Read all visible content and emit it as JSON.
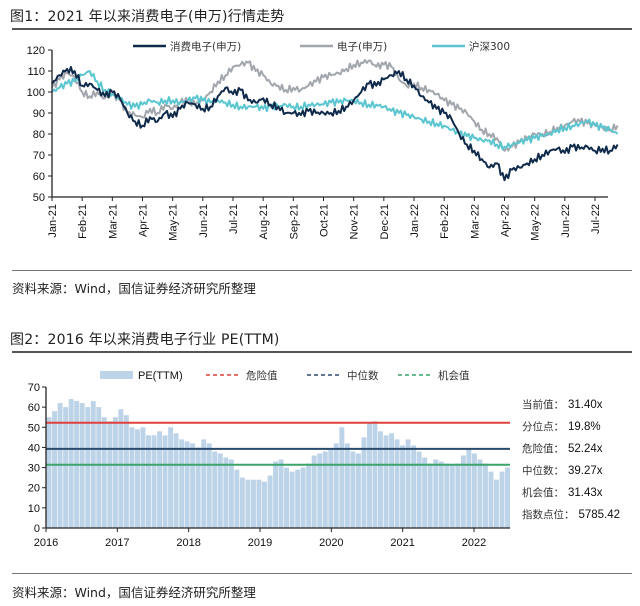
{
  "figure1": {
    "title": "图1：2021 年以来消费电子(申万)行情走势",
    "source": "资料来源：Wind，国信证券经济研究所整理"
  },
  "figure2": {
    "title": "图2：2016 年以来消费电子行业 PE(TTM)",
    "source": "资料来源：Wind，国信证券经济研究所整理",
    "stats": [
      {
        "label": "当前值：",
        "value": "31.40x"
      },
      {
        "label": "分位点：",
        "value": "19.8%"
      },
      {
        "label": "危险值：",
        "value": "52.24x"
      },
      {
        "label": "中位数：",
        "value": "39.27x"
      },
      {
        "label": "机会值：",
        "value": "31.43x"
      },
      {
        "label": "指数点位：",
        "value": "5785.42"
      }
    ]
  },
  "chart_data": [
    {
      "type": "line",
      "title": "图1：2021 年以来消费电子(申万)行情走势",
      "xlabel": "",
      "ylabel": "",
      "ylim": [
        50,
        120
      ],
      "yticks": [
        50,
        60,
        70,
        80,
        90,
        100,
        110,
        120
      ],
      "xticks": [
        "Jan-21",
        "Feb-21",
        "Mar-21",
        "Apr-21",
        "May-21",
        "Jun-21",
        "Jul-21",
        "Aug-21",
        "Sep-21",
        "Oct-21",
        "Nov-21",
        "Dec-21",
        "Jan-22",
        "Feb-22",
        "Mar-22",
        "Apr-22",
        "May-22",
        "Jun-22",
        "Jul-22"
      ],
      "legend_position": "top",
      "x": [
        0,
        0.25,
        0.5,
        0.75,
        1,
        1.25,
        1.5,
        1.75,
        2,
        2.25,
        2.5,
        2.75,
        3,
        3.25,
        3.5,
        3.75,
        4,
        4.25,
        4.5,
        4.75,
        5,
        5.25,
        5.5,
        5.75,
        6,
        6.25,
        6.5,
        6.75,
        7,
        7.25,
        7.5,
        7.75,
        8,
        8.25,
        8.5,
        8.75,
        9,
        9.25,
        9.5,
        9.75,
        10,
        10.25,
        10.5,
        10.75,
        11,
        11.25,
        11.5,
        11.75,
        12,
        12.25,
        12.5,
        12.75,
        13,
        13.25,
        13.5,
        13.75,
        14,
        14.25,
        14.5,
        14.75,
        15,
        15.25,
        15.5,
        15.75,
        16,
        16.25,
        16.5,
        16.75,
        17,
        17.25,
        17.5,
        17.75,
        18,
        18.25,
        18.5,
        18.75
      ],
      "series": [
        {
          "name": "消费电子(申万)",
          "color": "#0f2a4a",
          "values": [
            104,
            108,
            111,
            110,
            103,
            104,
            101,
            98,
            100,
            97,
            90,
            86,
            84,
            88,
            86,
            90,
            88,
            92,
            95,
            94,
            92,
            93,
            98,
            102,
            99,
            101,
            96,
            95,
            97,
            94,
            93,
            90,
            90,
            89,
            91,
            90,
            90,
            90,
            91,
            93,
            96,
            100,
            104,
            103,
            106,
            108,
            110,
            106,
            103,
            98,
            95,
            92,
            90,
            87,
            80,
            75,
            72,
            68,
            64,
            66,
            58,
            63,
            64,
            66,
            68,
            70,
            72,
            73,
            71,
            74,
            73,
            74,
            72,
            73,
            72,
            75
          ]
        },
        {
          "name": "电子(申万)",
          "color": "#a2a6ad",
          "values": [
            102,
            106,
            109,
            107,
            100,
            98,
            100,
            97,
            99,
            96,
            90,
            89,
            88,
            92,
            90,
            94,
            92,
            95,
            96,
            94,
            96,
            100,
            105,
            108,
            112,
            113,
            114,
            110,
            108,
            104,
            103,
            101,
            102,
            101,
            103,
            105,
            107,
            108,
            109,
            111,
            113,
            114,
            115,
            112,
            113,
            112,
            106,
            103,
            104,
            102,
            101,
            99,
            96,
            94,
            92,
            90,
            86,
            82,
            80,
            78,
            72,
            74,
            76,
            78,
            80,
            80,
            81,
            83,
            84,
            86,
            86,
            85,
            84,
            83,
            82,
            84
          ]
        },
        {
          "name": "沪深300",
          "color": "#5cc6d0",
          "values": [
            100,
            102,
            104,
            105,
            108,
            110,
            105,
            101,
            99,
            97,
            94,
            93,
            94,
            96,
            95,
            96,
            96,
            95,
            96,
            97,
            96,
            95,
            96,
            95,
            94,
            93,
            93,
            93,
            92,
            93,
            93,
            94,
            93,
            93,
            94,
            94,
            94,
            95,
            95,
            96,
            96,
            95,
            94,
            94,
            93,
            91,
            90,
            89,
            88,
            87,
            86,
            85,
            84,
            82,
            80,
            79,
            78,
            77,
            77,
            75,
            74,
            75,
            76,
            77,
            78,
            79,
            80,
            82,
            83,
            84,
            85,
            86,
            84,
            83,
            82,
            80
          ]
        }
      ]
    },
    {
      "type": "bar",
      "title": "图2：2016 年以来消费电子行业 PE(TTM)",
      "xlabel": "",
      "ylabel": "",
      "ylim": [
        0,
        70
      ],
      "yticks": [
        0,
        10,
        20,
        30,
        40,
        50,
        60,
        70
      ],
      "xticks": [
        "2016",
        "2017",
        "2018",
        "2019",
        "2020",
        "2021",
        "2022"
      ],
      "legend_position": "top",
      "series": [
        {
          "name": "PE(TTM)",
          "color": "#bcd3e8",
          "x_start": 2016,
          "step_years": 0.0833,
          "values": [
            55,
            58,
            62,
            60,
            64,
            63,
            62,
            60,
            63,
            60,
            55,
            53,
            55,
            59,
            56,
            50,
            49,
            50,
            46,
            46,
            48,
            46,
            50,
            47,
            44,
            43,
            42,
            40,
            44,
            42,
            38,
            37,
            35,
            34,
            29,
            25,
            24,
            24,
            24,
            23,
            26,
            33,
            34,
            30,
            28,
            29,
            30,
            32,
            36,
            37,
            38,
            39,
            42,
            50,
            42,
            38,
            37,
            45,
            52,
            53,
            48,
            46,
            47,
            44,
            41,
            44,
            41,
            38,
            35,
            32,
            34,
            33,
            32,
            31,
            32,
            36,
            39,
            37,
            34,
            32,
            28,
            24,
            28,
            30
          ]
        },
        {
          "name": "危险值",
          "color": "#e0403a",
          "value": 52.24
        },
        {
          "name": "中位数",
          "color": "#2a4a6e",
          "value": 39.27
        },
        {
          "name": "机会值",
          "color": "#3aa46a",
          "value": 31.43
        }
      ]
    }
  ]
}
